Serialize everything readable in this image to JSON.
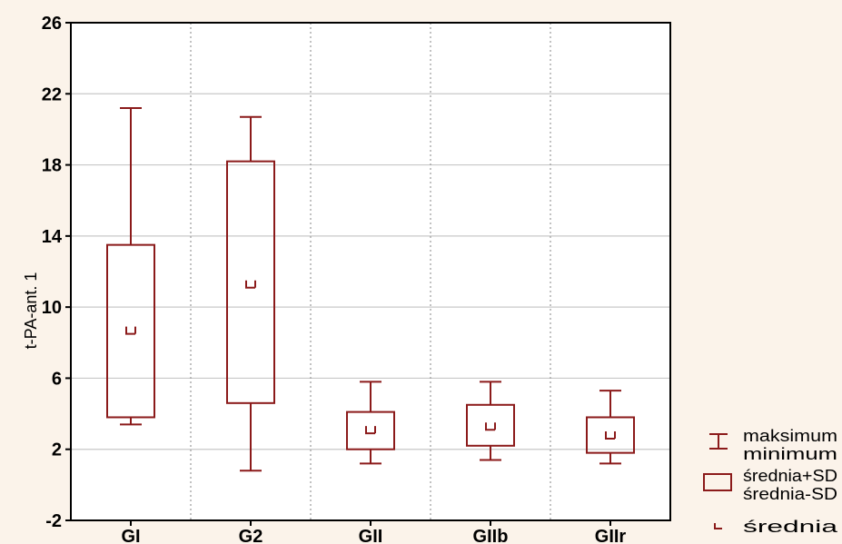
{
  "chart_data": {
    "type": "box",
    "ylabel": "t-PA-ant. 1",
    "ylim": [
      -2,
      26
    ],
    "yticks": [
      -2,
      2,
      6,
      10,
      14,
      18,
      22,
      26
    ],
    "grid": true,
    "categories": [
      "GI",
      "G2",
      "GII",
      "GIIb",
      "GIIr"
    ],
    "whisker_max": [
      21.2,
      20.7,
      5.8,
      5.8,
      5.3
    ],
    "whisker_min": [
      3.4,
      0.8,
      1.2,
      1.4,
      1.2
    ],
    "box_top": [
      13.5,
      18.2,
      4.1,
      4.5,
      3.8
    ],
    "box_bottom": [
      3.8,
      4.6,
      2.0,
      2.2,
      1.8
    ],
    "mean": [
      8.7,
      11.3,
      3.1,
      3.3,
      2.8
    ],
    "color": "#8b1a1a",
    "legend_placement": "right",
    "legend": [
      {
        "symbol": "whisker",
        "lines": [
          "maksimum",
          "minimum"
        ]
      },
      {
        "symbol": "box",
        "lines": [
          "średnia+SD",
          "średnia-SD"
        ]
      },
      {
        "symbol": "mean",
        "lines": [
          "średnia"
        ]
      }
    ]
  }
}
